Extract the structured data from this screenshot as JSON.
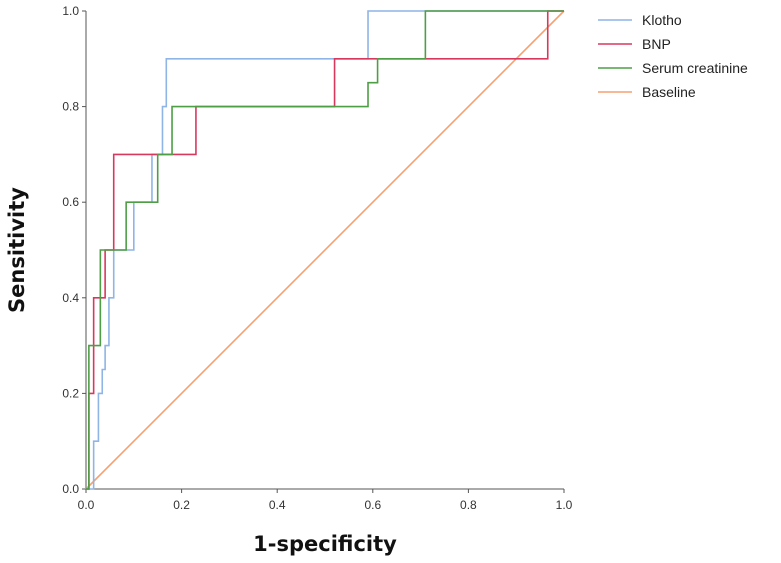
{
  "chart_data": {
    "type": "line",
    "title": "",
    "xlabel": "1-specificity",
    "ylabel": "Sensitivity",
    "xlim": [
      0,
      1
    ],
    "ylim": [
      0,
      1
    ],
    "xticks": [
      0.0,
      0.2,
      0.4,
      0.6,
      0.8,
      1.0
    ],
    "yticks": [
      0.0,
      0.2,
      0.4,
      0.6,
      0.8,
      1.0
    ],
    "xtick_labels": [
      "0.0",
      "0.2",
      "0.4",
      "0.6",
      "0.8",
      "1.0"
    ],
    "ytick_labels": [
      "0.0",
      "0.2",
      "0.4",
      "0.6",
      "0.8",
      "1.0"
    ],
    "grid": false,
    "legend_position": "top-right, outside plot",
    "series": [
      {
        "name": "Klotho",
        "color": "#8fb4e6",
        "points": [
          [
            0,
            0
          ],
          [
            0.016,
            0
          ],
          [
            0.016,
            0.1
          ],
          [
            0.026,
            0.1
          ],
          [
            0.026,
            0.2
          ],
          [
            0.034,
            0.2
          ],
          [
            0.034,
            0.25
          ],
          [
            0.04,
            0.25
          ],
          [
            0.04,
            0.3
          ],
          [
            0.048,
            0.3
          ],
          [
            0.048,
            0.4
          ],
          [
            0.058,
            0.4
          ],
          [
            0.058,
            0.5
          ],
          [
            0.1,
            0.5
          ],
          [
            0.1,
            0.6
          ],
          [
            0.138,
            0.6
          ],
          [
            0.138,
            0.7
          ],
          [
            0.16,
            0.7
          ],
          [
            0.16,
            0.8
          ],
          [
            0.168,
            0.8
          ],
          [
            0.168,
            0.9
          ],
          [
            0.59,
            0.9
          ],
          [
            0.59,
            1.0
          ],
          [
            1.0,
            1.0
          ]
        ]
      },
      {
        "name": "BNP",
        "color": "#d9385e",
        "points": [
          [
            0,
            0
          ],
          [
            0.006,
            0
          ],
          [
            0.006,
            0.2
          ],
          [
            0.016,
            0.2
          ],
          [
            0.016,
            0.4
          ],
          [
            0.04,
            0.4
          ],
          [
            0.04,
            0.5
          ],
          [
            0.058,
            0.5
          ],
          [
            0.058,
            0.7
          ],
          [
            0.23,
            0.7
          ],
          [
            0.23,
            0.8
          ],
          [
            0.52,
            0.8
          ],
          [
            0.52,
            0.9
          ],
          [
            0.966,
            0.9
          ],
          [
            0.966,
            1.0
          ],
          [
            1.0,
            1.0
          ]
        ]
      },
      {
        "name": "Serum creatinine",
        "color": "#4e9e46",
        "points": [
          [
            0,
            0
          ],
          [
            0.006,
            0
          ],
          [
            0.006,
            0.3
          ],
          [
            0.03,
            0.3
          ],
          [
            0.03,
            0.5
          ],
          [
            0.084,
            0.5
          ],
          [
            0.084,
            0.6
          ],
          [
            0.15,
            0.6
          ],
          [
            0.15,
            0.7
          ],
          [
            0.18,
            0.7
          ],
          [
            0.18,
            0.8
          ],
          [
            0.59,
            0.8
          ],
          [
            0.59,
            0.85
          ],
          [
            0.61,
            0.85
          ],
          [
            0.61,
            0.9
          ],
          [
            0.71,
            0.9
          ],
          [
            0.71,
            1.0
          ],
          [
            1.0,
            1.0
          ]
        ]
      },
      {
        "name": "Baseline",
        "color": "#f6a172",
        "points": [
          [
            0,
            0
          ],
          [
            1,
            1
          ]
        ]
      }
    ]
  }
}
